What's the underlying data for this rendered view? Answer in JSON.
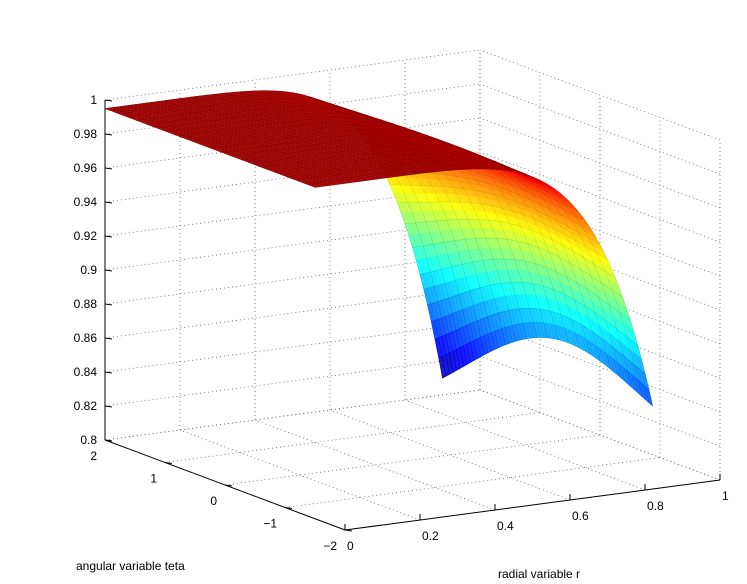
{
  "chart_data": {
    "type": "surface",
    "title": "",
    "xlabel": "radial variable r",
    "ylabel": "angular variable teta",
    "zlabel": "",
    "x_range": [
      0,
      1
    ],
    "y_range": [
      -2,
      2
    ],
    "z_range": [
      0.8,
      1
    ],
    "x_ticks": [
      "0",
      "0.2",
      "0.4",
      "0.6",
      "0.8",
      "1"
    ],
    "y_ticks": [
      "−2",
      "−1",
      "0",
      "1",
      "2"
    ],
    "z_ticks": [
      "0.8",
      "0.82",
      "0.84",
      "0.86",
      "0.88",
      "0.9",
      "0.92",
      "0.94",
      "0.96",
      "0.98",
      "1"
    ],
    "grid": true,
    "colormap": "jet",
    "surface_extent": {
      "r_max": 0.9,
      "teta_min": -1.5,
      "teta_max": 2.0
    },
    "surface_profile": {
      "near_axis_value": 0.995,
      "edge_value_at_teta_min": 0.84,
      "edge_value_at_teta_max": 0.81,
      "edge_bump_value": 0.86
    }
  }
}
